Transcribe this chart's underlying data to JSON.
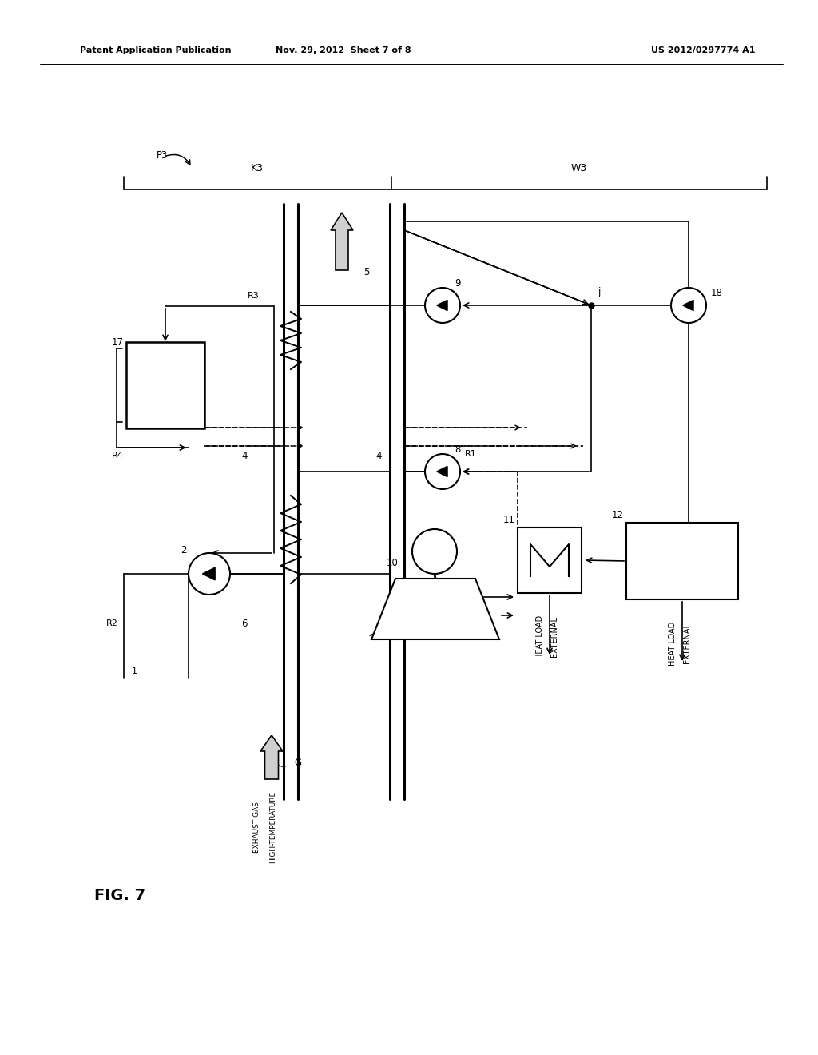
{
  "bg": "#ffffff",
  "lc": "#000000",
  "header_left": "Patent Application Publication",
  "header_mid": "Nov. 29, 2012  Sheet 7 of 8",
  "header_right": "US 2012/0297774 A1",
  "fig_label": "FIG. 7",
  "fig_num": "7"
}
